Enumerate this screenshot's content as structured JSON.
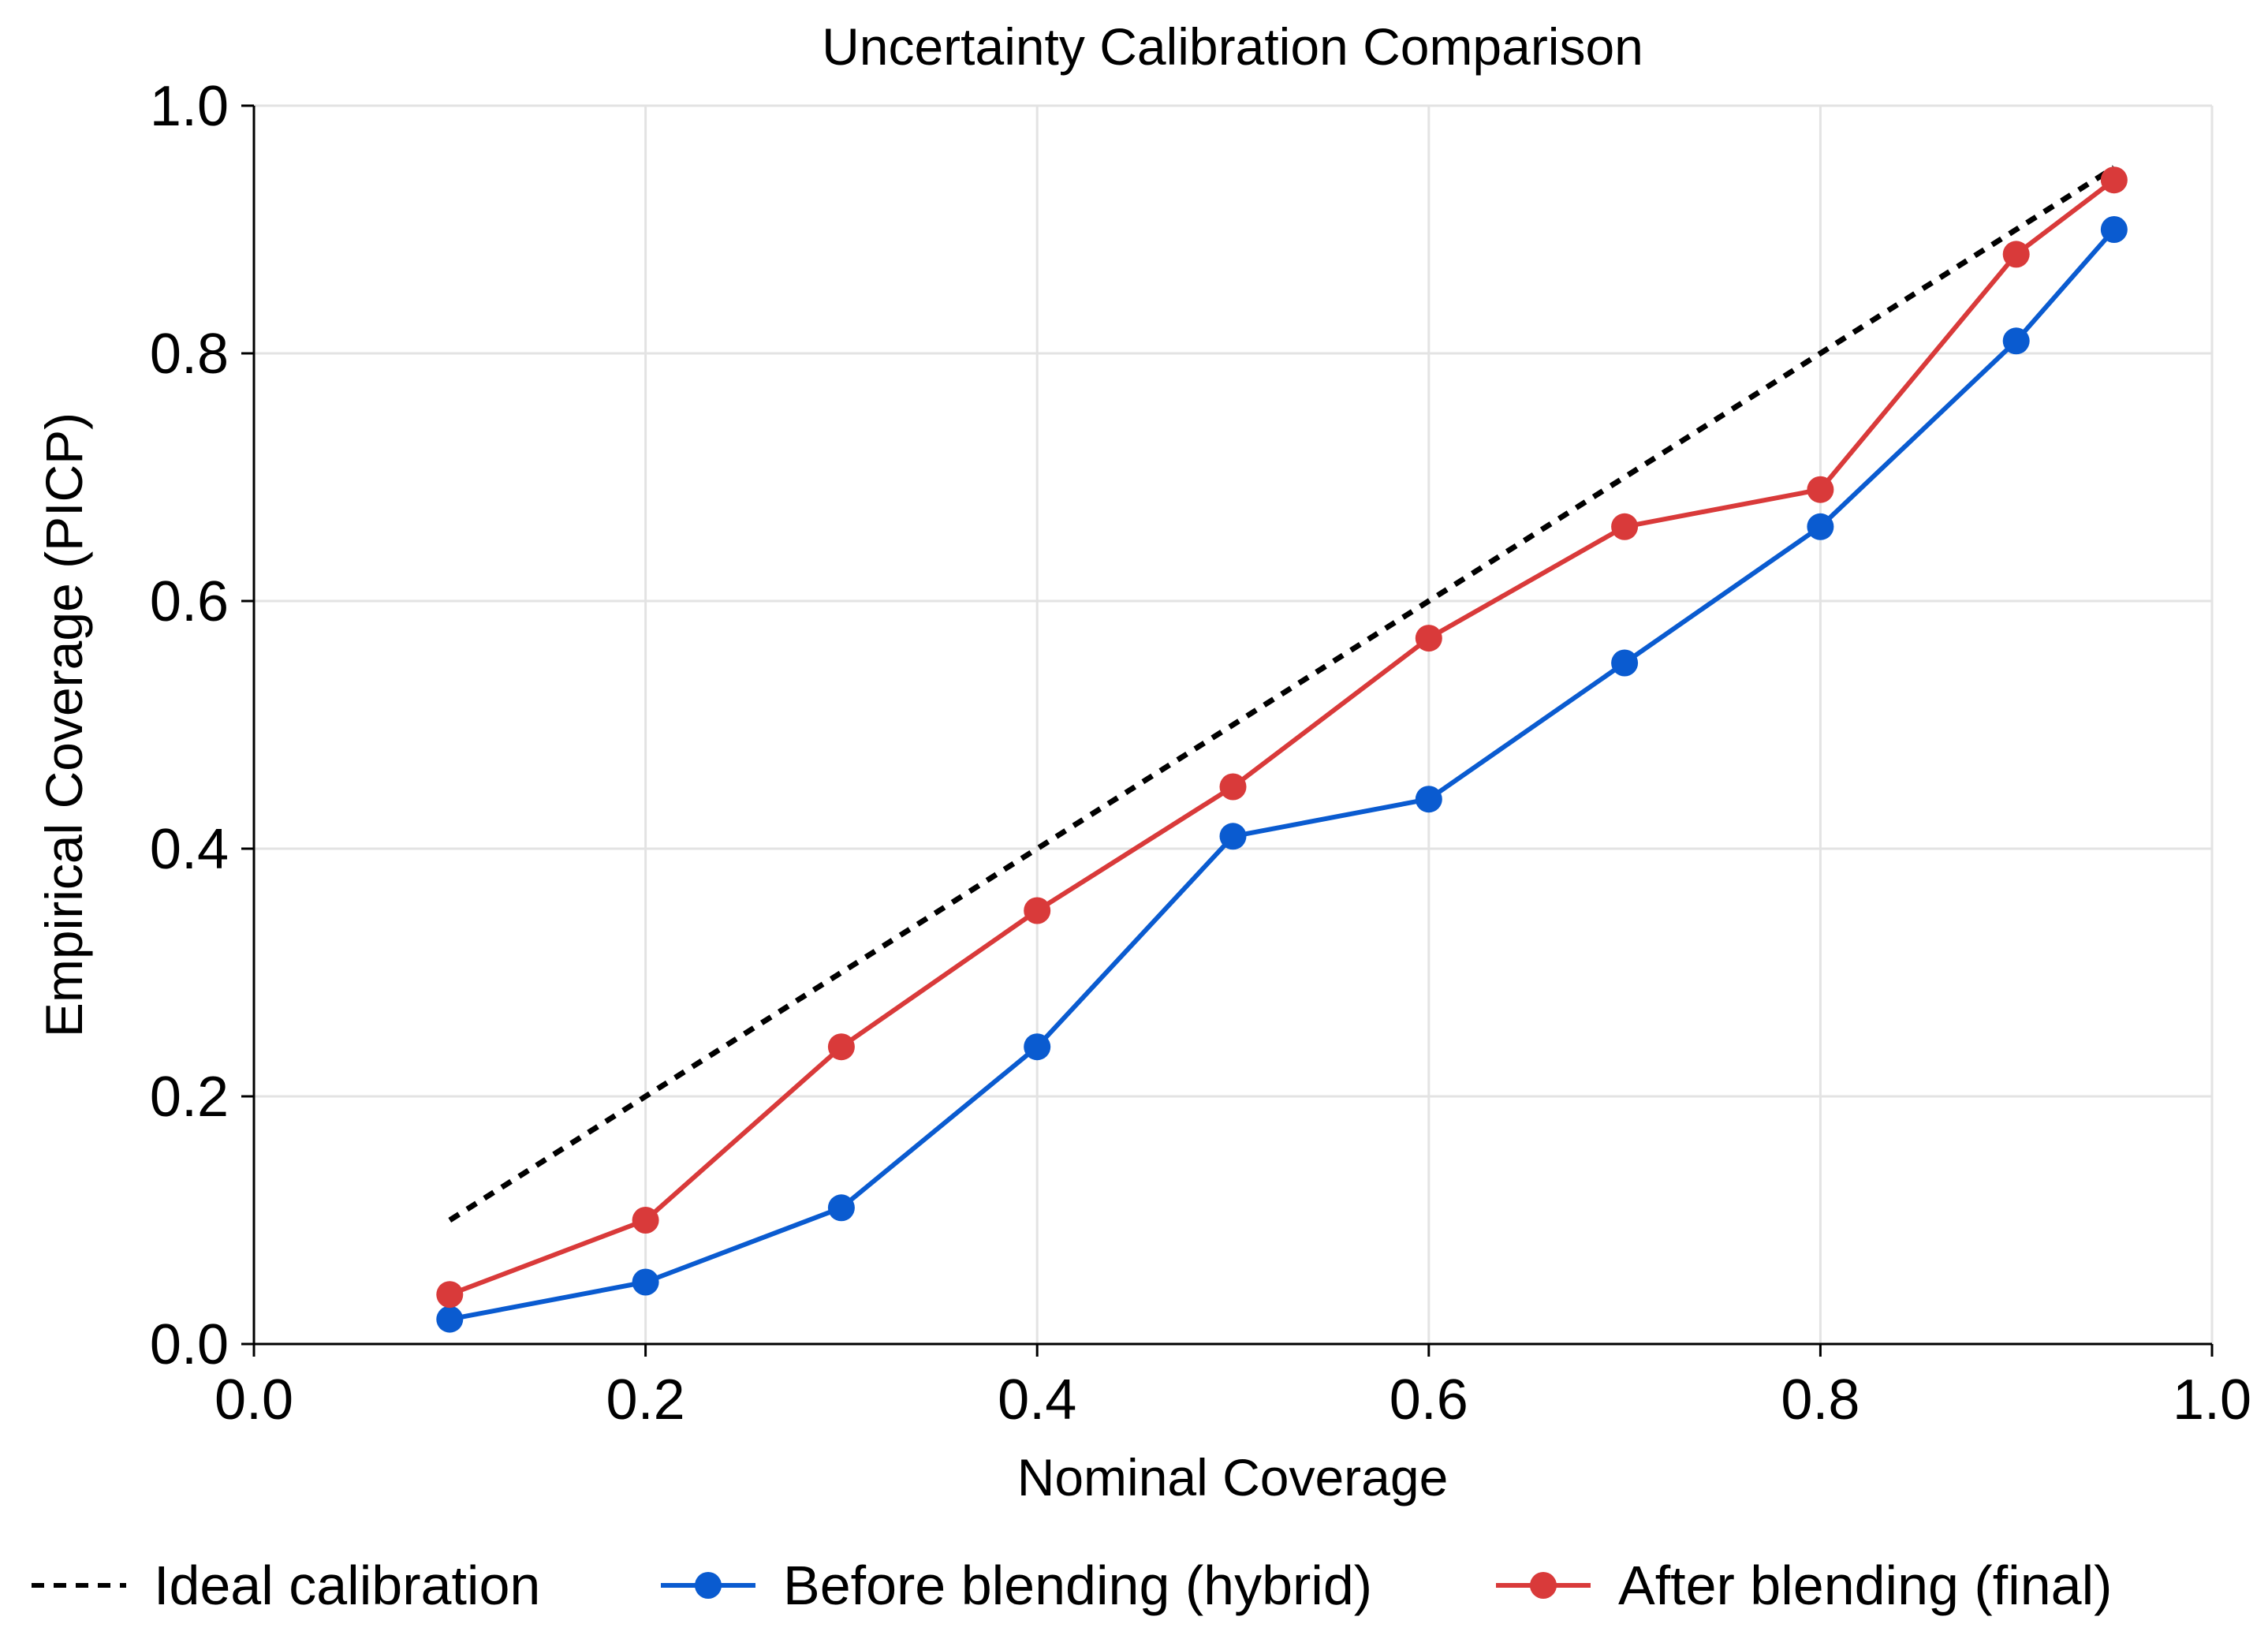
{
  "chart_data": {
    "type": "line",
    "title": "Uncertainty Calibration Comparison",
    "xlabel": "Nominal Coverage",
    "ylabel": "Empirical Coverage (PICP)",
    "xlim": [
      0.0,
      1.0
    ],
    "ylim": [
      0.0,
      1.0
    ],
    "xticks": [
      "0.0",
      "0.2",
      "0.4",
      "0.6",
      "0.8",
      "1.0"
    ],
    "yticks": [
      "0.0",
      "0.2",
      "0.4",
      "0.6",
      "0.8",
      "1.0"
    ],
    "grid": true,
    "legend_position": "bottom",
    "series": [
      {
        "name": "Ideal calibration",
        "style": "dotted",
        "color": "#000000",
        "markers": false,
        "x": [
          0.1,
          0.95
        ],
        "y": [
          0.1,
          0.95
        ]
      },
      {
        "name": "Before blending (hybrid)",
        "style": "solid",
        "color": "#0a5bd0",
        "markers": true,
        "x": [
          0.1,
          0.2,
          0.3,
          0.4,
          0.5,
          0.6,
          0.7,
          0.8,
          0.9,
          0.95
        ],
        "y": [
          0.02,
          0.05,
          0.11,
          0.24,
          0.41,
          0.44,
          0.55,
          0.66,
          0.81,
          0.9
        ]
      },
      {
        "name": "After blending (final)",
        "style": "solid",
        "color": "#d93a3a",
        "markers": true,
        "x": [
          0.1,
          0.2,
          0.3,
          0.4,
          0.5,
          0.6,
          0.7,
          0.8,
          0.9,
          0.95
        ],
        "y": [
          0.04,
          0.1,
          0.24,
          0.35,
          0.45,
          0.57,
          0.66,
          0.69,
          0.88,
          0.94
        ]
      }
    ]
  }
}
